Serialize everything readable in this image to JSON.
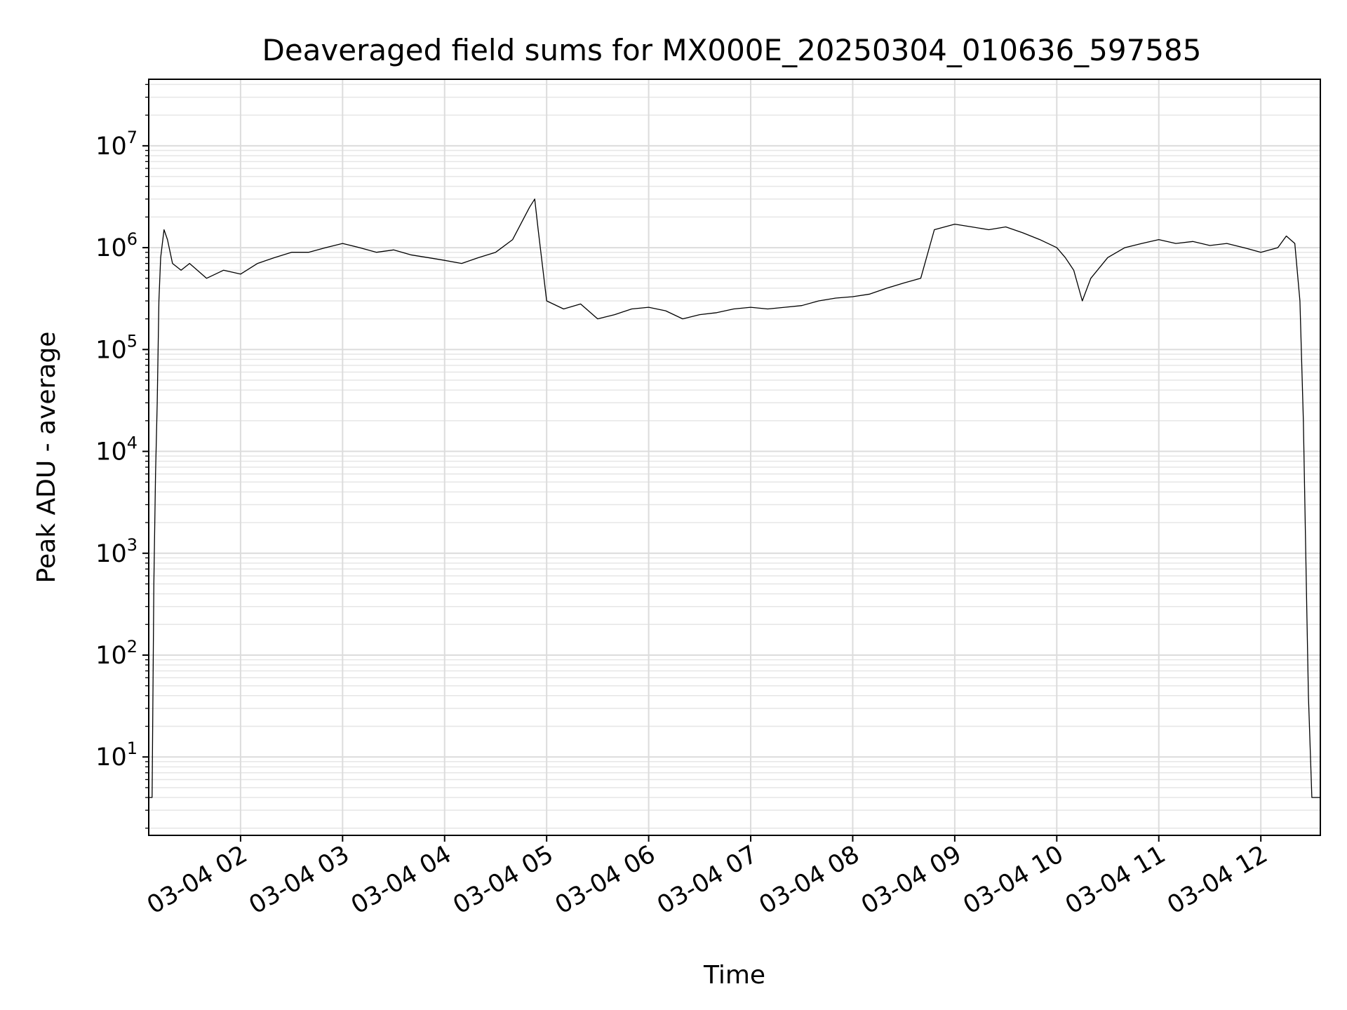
{
  "chart_data": {
    "type": "line",
    "title": "Deaveraged field sums for MX000E_20250304_010636_597585",
    "xlabel": "Time",
    "ylabel": "Peak ADU - average",
    "yscale": "log",
    "grid": true,
    "x_ticks": [
      "03-04 02",
      "03-04 03",
      "03-04 04",
      "03-04 05",
      "03-04 06",
      "03-04 07",
      "03-04 08",
      "03-04 09",
      "03-04 10",
      "03-04 11",
      "03-04 12"
    ],
    "y_ticks": [
      {
        "base": "10",
        "exp": "1"
      },
      {
        "base": "10",
        "exp": "2"
      },
      {
        "base": "10",
        "exp": "3"
      },
      {
        "base": "10",
        "exp": "4"
      },
      {
        "base": "10",
        "exp": "5"
      },
      {
        "base": "10",
        "exp": "6"
      },
      {
        "base": "10",
        "exp": "7"
      }
    ],
    "xlim": [
      "03-04 01:06",
      "03-04 12:35"
    ],
    "ylim": [
      1.7,
      45000000
    ],
    "line_color": "#000000",
    "series": [
      {
        "points": [
          [
            "03-04 01:06",
            4
          ],
          [
            "03-04 01:08",
            4
          ],
          [
            "03-04 01:09",
            500
          ],
          [
            "03-04 01:10",
            6000
          ],
          [
            "03-04 01:11",
            30000
          ],
          [
            "03-04 01:12",
            300000
          ],
          [
            "03-04 01:13",
            800000
          ],
          [
            "03-04 01:15",
            1500000
          ],
          [
            "03-04 01:17",
            1200000
          ],
          [
            "03-04 01:20",
            700000
          ],
          [
            "03-04 01:25",
            600000
          ],
          [
            "03-04 01:30",
            700000
          ],
          [
            "03-04 01:40",
            500000
          ],
          [
            "03-04 01:50",
            600000
          ],
          [
            "03-04 02:00",
            550000
          ],
          [
            "03-04 02:10",
            700000
          ],
          [
            "03-04 02:20",
            800000
          ],
          [
            "03-04 02:30",
            900000
          ],
          [
            "03-04 02:40",
            900000
          ],
          [
            "03-04 02:50",
            1000000
          ],
          [
            "03-04 03:00",
            1100000
          ],
          [
            "03-04 03:10",
            1000000
          ],
          [
            "03-04 03:20",
            900000
          ],
          [
            "03-04 03:30",
            950000
          ],
          [
            "03-04 03:40",
            850000
          ],
          [
            "03-04 03:50",
            800000
          ],
          [
            "03-04 04:00",
            750000
          ],
          [
            "03-04 04:10",
            700000
          ],
          [
            "03-04 04:20",
            800000
          ],
          [
            "03-04 04:30",
            900000
          ],
          [
            "03-04 04:40",
            1200000
          ],
          [
            "03-04 04:50",
            2500000
          ],
          [
            "03-04 04:53",
            3000000
          ],
          [
            "03-04 04:55",
            1500000
          ],
          [
            "03-04 05:00",
            300000
          ],
          [
            "03-04 05:10",
            250000
          ],
          [
            "03-04 05:20",
            280000
          ],
          [
            "03-04 05:30",
            200000
          ],
          [
            "03-04 05:40",
            220000
          ],
          [
            "03-04 05:50",
            250000
          ],
          [
            "03-04 06:00",
            260000
          ],
          [
            "03-04 06:10",
            240000
          ],
          [
            "03-04 06:20",
            200000
          ],
          [
            "03-04 06:30",
            220000
          ],
          [
            "03-04 06:40",
            230000
          ],
          [
            "03-04 06:50",
            250000
          ],
          [
            "03-04 07:00",
            260000
          ],
          [
            "03-04 07:10",
            250000
          ],
          [
            "03-04 07:20",
            260000
          ],
          [
            "03-04 07:30",
            270000
          ],
          [
            "03-04 07:40",
            300000
          ],
          [
            "03-04 07:50",
            320000
          ],
          [
            "03-04 08:00",
            330000
          ],
          [
            "03-04 08:10",
            350000
          ],
          [
            "03-04 08:20",
            400000
          ],
          [
            "03-04 08:30",
            450000
          ],
          [
            "03-04 08:40",
            500000
          ],
          [
            "03-04 08:48",
            1500000
          ],
          [
            "03-04 09:00",
            1700000
          ],
          [
            "03-04 09:10",
            1600000
          ],
          [
            "03-04 09:20",
            1500000
          ],
          [
            "03-04 09:30",
            1600000
          ],
          [
            "03-04 09:40",
            1400000
          ],
          [
            "03-04 09:50",
            1200000
          ],
          [
            "03-04 10:00",
            1000000
          ],
          [
            "03-04 10:05",
            800000
          ],
          [
            "03-04 10:10",
            600000
          ],
          [
            "03-04 10:15",
            300000
          ],
          [
            "03-04 10:20",
            500000
          ],
          [
            "03-04 10:30",
            800000
          ],
          [
            "03-04 10:40",
            1000000
          ],
          [
            "03-04 10:50",
            1100000
          ],
          [
            "03-04 11:00",
            1200000
          ],
          [
            "03-04 11:10",
            1100000
          ],
          [
            "03-04 11:20",
            1150000
          ],
          [
            "03-04 11:30",
            1050000
          ],
          [
            "03-04 11:40",
            1100000
          ],
          [
            "03-04 11:50",
            1000000
          ],
          [
            "03-04 12:00",
            900000
          ],
          [
            "03-04 12:10",
            1000000
          ],
          [
            "03-04 12:15",
            1300000
          ],
          [
            "03-04 12:20",
            1100000
          ],
          [
            "03-04 12:23",
            300000
          ],
          [
            "03-04 12:25",
            20000
          ],
          [
            "03-04 12:27",
            300
          ],
          [
            "03-04 12:28",
            40
          ],
          [
            "03-04 12:30",
            4
          ],
          [
            "03-04 12:35",
            4
          ]
        ]
      }
    ]
  }
}
